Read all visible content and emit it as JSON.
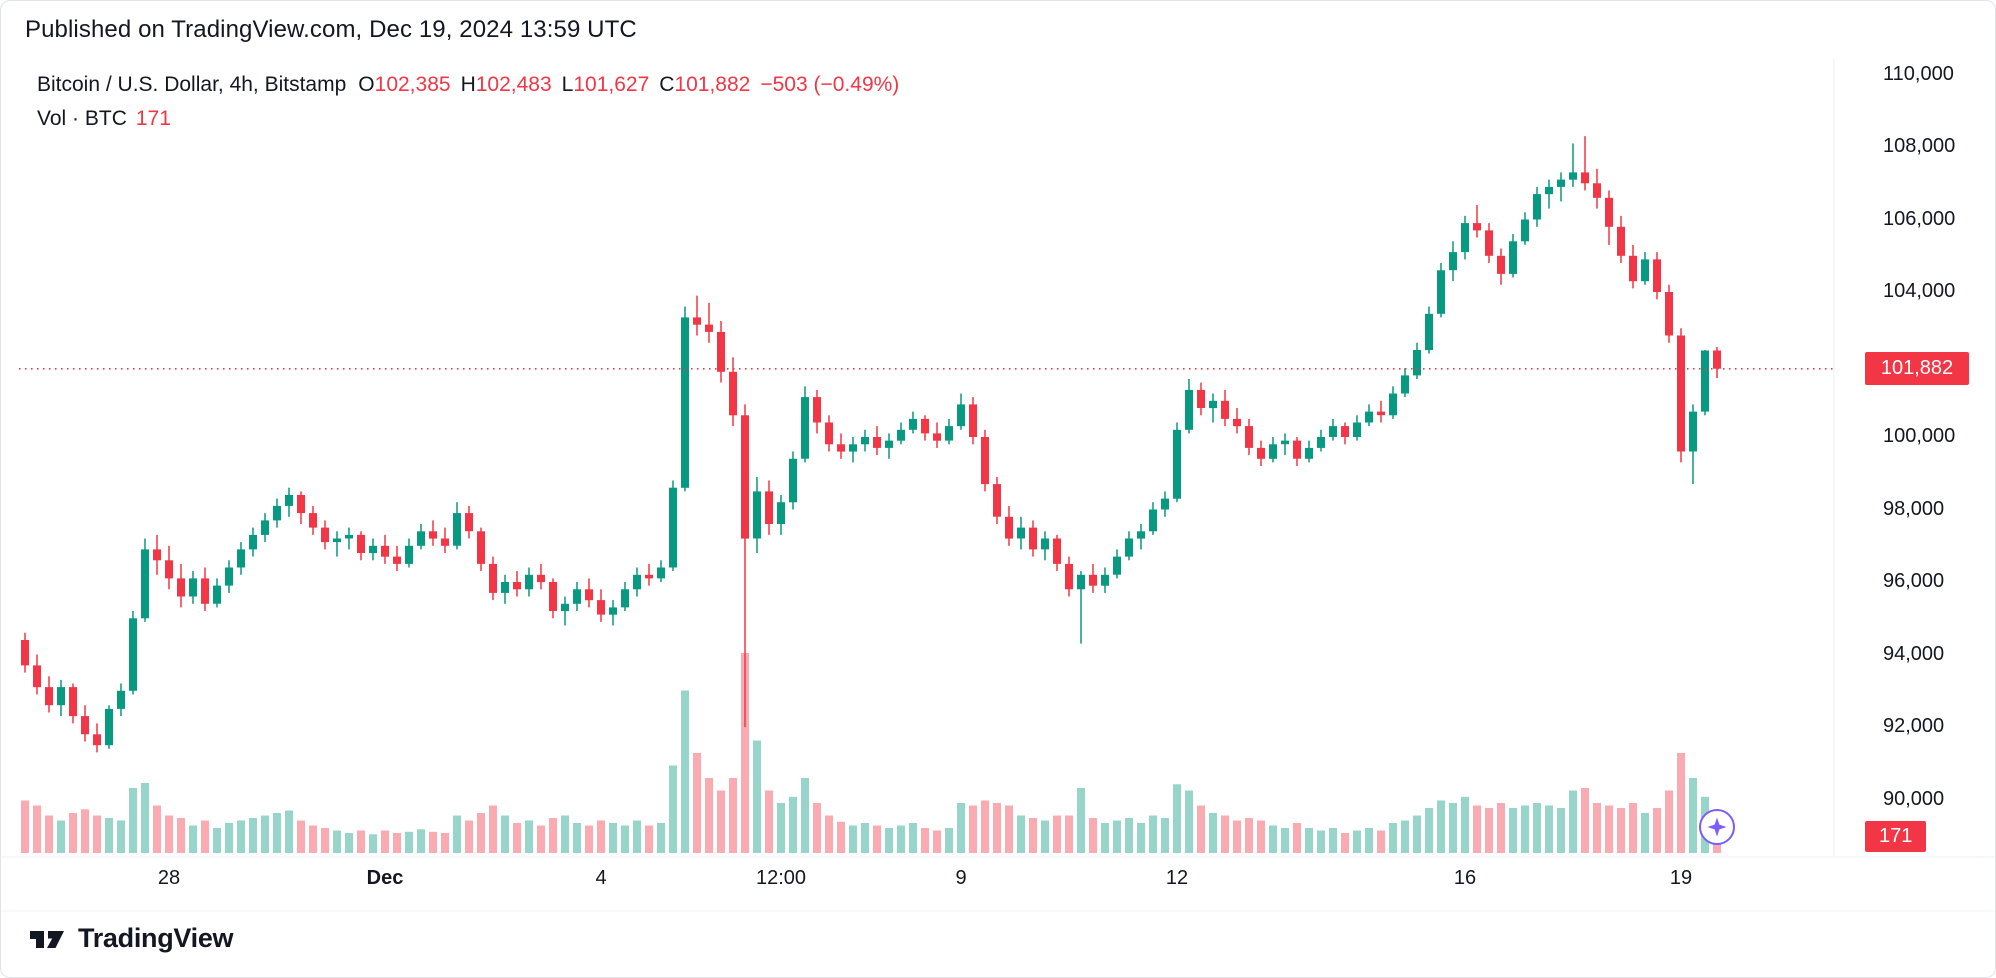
{
  "header": {
    "published": "Published on TradingView.com, Dec 19, 2024 13:59 UTC"
  },
  "legend": {
    "title": "Bitcoin / U.S. Dollar, 4h, Bitstamp",
    "ohlc": {
      "o_key": "O",
      "o_val": "102,385",
      "h_key": "H",
      "h_val": "102,483",
      "l_key": "L",
      "l_val": "101,627",
      "c_key": "C",
      "c_val": "101,882",
      "change": "−503 (−0.49%)"
    },
    "volume_row": {
      "label": "Vol · BTC",
      "value": "171"
    }
  },
  "price_tag": {
    "text": "101,882",
    "value": 101882
  },
  "volume_tag": {
    "text": "171"
  },
  "price_axis": {
    "ticks": [
      {
        "text": "110,000",
        "value": 110000
      },
      {
        "text": "108,000",
        "value": 108000
      },
      {
        "text": "106,000",
        "value": 106000
      },
      {
        "text": "104,000",
        "value": 104000
      },
      {
        "text": "100,000",
        "value": 100000
      },
      {
        "text": "98,000",
        "value": 98000
      },
      {
        "text": "96,000",
        "value": 96000
      },
      {
        "text": "94,000",
        "value": 94000
      },
      {
        "text": "92,000",
        "value": 92000
      },
      {
        "text": "90,000",
        "value": 90000
      }
    ]
  },
  "time_axis": {
    "labels": [
      {
        "text": "28",
        "index": 12,
        "bold": false
      },
      {
        "text": "Dec",
        "index": 30,
        "bold": true
      },
      {
        "text": "4",
        "index": 48,
        "bold": false
      },
      {
        "text": "12:00",
        "index": 63,
        "bold": false
      },
      {
        "text": "9",
        "index": 78,
        "bold": false
      },
      {
        "text": "12",
        "index": 96,
        "bold": false
      },
      {
        "text": "16",
        "index": 120,
        "bold": false
      },
      {
        "text": "19",
        "index": 138,
        "bold": false
      }
    ]
  },
  "footer": {
    "brand": "TradingView"
  },
  "colors": {
    "up": "#089981",
    "down": "#f23645",
    "text": "#131722",
    "tag_bg": "#f23645",
    "tag_text": "#ffffff",
    "price_line": "#f23645",
    "separator": "#eceff2",
    "sparkle": "#7c5cfa"
  },
  "chart_data": {
    "type": "candlestick",
    "title": "Bitcoin / U.S. Dollar, 4h, Bitstamp",
    "timeframe": "4h",
    "exchange": "Bitstamp",
    "published": "Dec 19, 2024 13:59 UTC",
    "last_candle": {
      "open": 102385,
      "high": 102483,
      "low": 101627,
      "close": 101882,
      "change": -503,
      "change_pct": -0.49,
      "volume_btc": 171
    },
    "price_line_value": 101882,
    "y_axis": {
      "visible_ticks": [
        110000,
        108000,
        106000,
        104000,
        100000,
        98000,
        96000,
        94000,
        92000,
        90000
      ],
      "visible_range": [
        89200,
        110600
      ]
    },
    "x_axis": {
      "tick_labels": [
        "28",
        "Dec",
        "4",
        "12:00",
        "9",
        "12",
        "16",
        "19"
      ]
    },
    "columns": [
      "open",
      "high",
      "low",
      "close",
      "volume"
    ],
    "candles": [
      [
        94400,
        94600,
        93500,
        93700,
        420
      ],
      [
        93700,
        94000,
        92900,
        93100,
        380
      ],
      [
        93100,
        93400,
        92400,
        92600,
        300
      ],
      [
        92600,
        93300,
        92300,
        93100,
        260
      ],
      [
        93100,
        93200,
        92100,
        92300,
        320
      ],
      [
        92300,
        92600,
        91600,
        91800,
        350
      ],
      [
        91800,
        92100,
        91300,
        91500,
        300
      ],
      [
        91500,
        92600,
        91400,
        92500,
        280
      ],
      [
        92500,
        93200,
        92300,
        93000,
        260
      ],
      [
        93000,
        95200,
        92900,
        95000,
        520
      ],
      [
        95000,
        97200,
        94900,
        96900,
        560
      ],
      [
        96900,
        97300,
        96200,
        96600,
        380
      ],
      [
        96600,
        97000,
        95800,
        96100,
        300
      ],
      [
        96100,
        96500,
        95300,
        95600,
        280
      ],
      [
        95600,
        96300,
        95400,
        96100,
        220
      ],
      [
        96100,
        96400,
        95200,
        95400,
        260
      ],
      [
        95400,
        96100,
        95300,
        95900,
        200
      ],
      [
        95900,
        96600,
        95700,
        96400,
        240
      ],
      [
        96400,
        97100,
        96200,
        96900,
        260
      ],
      [
        96900,
        97500,
        96700,
        97300,
        280
      ],
      [
        97300,
        97900,
        97100,
        97700,
        300
      ],
      [
        97700,
        98300,
        97500,
        98100,
        320
      ],
      [
        98100,
        98600,
        97800,
        98400,
        340
      ],
      [
        98400,
        98500,
        97600,
        97900,
        260
      ],
      [
        97900,
        98100,
        97300,
        97500,
        220
      ],
      [
        97500,
        97700,
        96900,
        97100,
        200
      ],
      [
        97100,
        97400,
        96700,
        97200,
        180
      ],
      [
        97200,
        97500,
        96900,
        97300,
        160
      ],
      [
        97300,
        97400,
        96600,
        96800,
        180
      ],
      [
        96800,
        97200,
        96600,
        97000,
        150
      ],
      [
        97000,
        97300,
        96500,
        96700,
        180
      ],
      [
        96700,
        97000,
        96300,
        96500,
        160
      ],
      [
        96500,
        97200,
        96400,
        97000,
        170
      ],
      [
        97000,
        97600,
        96900,
        97400,
        190
      ],
      [
        97400,
        97700,
        97000,
        97200,
        170
      ],
      [
        97200,
        97500,
        96800,
        97000,
        160
      ],
      [
        97000,
        98200,
        96900,
        97900,
        300
      ],
      [
        97900,
        98100,
        97200,
        97400,
        260
      ],
      [
        97400,
        97500,
        96300,
        96500,
        320
      ],
      [
        96500,
        96700,
        95500,
        95700,
        380
      ],
      [
        95700,
        96200,
        95400,
        96000,
        300
      ],
      [
        96000,
        96300,
        95600,
        95800,
        240
      ],
      [
        95800,
        96400,
        95600,
        96200,
        260
      ],
      [
        96200,
        96500,
        95800,
        96000,
        220
      ],
      [
        96000,
        96100,
        95000,
        95200,
        280
      ],
      [
        95200,
        95600,
        94800,
        95400,
        300
      ],
      [
        95400,
        96000,
        95200,
        95800,
        240
      ],
      [
        95800,
        96100,
        95300,
        95500,
        220
      ],
      [
        95500,
        95800,
        94900,
        95100,
        260
      ],
      [
        95100,
        95500,
        94800,
        95300,
        240
      ],
      [
        95300,
        96000,
        95200,
        95800,
        220
      ],
      [
        95800,
        96400,
        95600,
        96200,
        260
      ],
      [
        96200,
        96500,
        95900,
        96100,
        220
      ],
      [
        96100,
        96600,
        96000,
        96400,
        240
      ],
      [
        96400,
        98800,
        96300,
        98600,
        700
      ],
      [
        98600,
        103600,
        98500,
        103300,
        1300
      ],
      [
        103300,
        103900,
        102800,
        103100,
        800
      ],
      [
        103100,
        103700,
        102600,
        102900,
        600
      ],
      [
        102900,
        103200,
        101500,
        101800,
        500
      ],
      [
        101800,
        102200,
        100300,
        100600,
        600
      ],
      [
        100600,
        100900,
        92000,
        97200,
        1600
      ],
      [
        97200,
        98900,
        96800,
        98500,
        900
      ],
      [
        98500,
        98800,
        97300,
        97600,
        500
      ],
      [
        97600,
        98400,
        97300,
        98200,
        400
      ],
      [
        98200,
        99600,
        98000,
        99400,
        450
      ],
      [
        99400,
        101400,
        99300,
        101100,
        600
      ],
      [
        101100,
        101300,
        100100,
        100400,
        400
      ],
      [
        100400,
        100600,
        99600,
        99800,
        300
      ],
      [
        99800,
        100100,
        99400,
        99600,
        250
      ],
      [
        99600,
        100000,
        99300,
        99800,
        220
      ],
      [
        99800,
        100200,
        99600,
        100000,
        240
      ],
      [
        100000,
        100300,
        99500,
        99700,
        220
      ],
      [
        99700,
        100100,
        99400,
        99900,
        200
      ],
      [
        99900,
        100400,
        99800,
        100200,
        220
      ],
      [
        100200,
        100700,
        100100,
        100500,
        240
      ],
      [
        100500,
        100600,
        99900,
        100100,
        200
      ],
      [
        100100,
        100400,
        99700,
        99900,
        180
      ],
      [
        99900,
        100500,
        99800,
        100300,
        200
      ],
      [
        100300,
        101200,
        100200,
        100900,
        400
      ],
      [
        100900,
        101100,
        99800,
        100000,
        380
      ],
      [
        100000,
        100200,
        98500,
        98700,
        420
      ],
      [
        98700,
        98900,
        97600,
        97800,
        400
      ],
      [
        97800,
        98100,
        97000,
        97200,
        380
      ],
      [
        97200,
        97800,
        96900,
        97500,
        300
      ],
      [
        97500,
        97700,
        96700,
        96900,
        280
      ],
      [
        96900,
        97400,
        96600,
        97200,
        260
      ],
      [
        97200,
        97300,
        96300,
        96500,
        300
      ],
      [
        96500,
        96700,
        95600,
        95800,
        300
      ],
      [
        95800,
        96300,
        94300,
        96200,
        520
      ],
      [
        96200,
        96500,
        95700,
        95900,
        280
      ],
      [
        95900,
        96400,
        95700,
        96200,
        240
      ],
      [
        96200,
        96900,
        96100,
        96700,
        260
      ],
      [
        96700,
        97400,
        96600,
        97200,
        280
      ],
      [
        97200,
        97600,
        96900,
        97400,
        240
      ],
      [
        97400,
        98200,
        97300,
        98000,
        300
      ],
      [
        98000,
        98500,
        97800,
        98300,
        280
      ],
      [
        98300,
        100400,
        98200,
        100200,
        550
      ],
      [
        100200,
        101600,
        100100,
        101300,
        500
      ],
      [
        101300,
        101500,
        100600,
        100800,
        380
      ],
      [
        100800,
        101200,
        100400,
        101000,
        320
      ],
      [
        101000,
        101300,
        100300,
        100500,
        300
      ],
      [
        100500,
        100800,
        100100,
        100300,
        260
      ],
      [
        100300,
        100500,
        99500,
        99700,
        280
      ],
      [
        99700,
        99900,
        99200,
        99400,
        260
      ],
      [
        99400,
        100000,
        99300,
        99800,
        220
      ],
      [
        99800,
        100100,
        99500,
        99900,
        200
      ],
      [
        99900,
        100000,
        99200,
        99400,
        240
      ],
      [
        99400,
        99900,
        99300,
        99700,
        200
      ],
      [
        99700,
        100200,
        99600,
        100000,
        180
      ],
      [
        100000,
        100500,
        99900,
        100300,
        200
      ],
      [
        100300,
        100400,
        99800,
        100000,
        160
      ],
      [
        100000,
        100600,
        99900,
        100400,
        180
      ],
      [
        100400,
        100900,
        100300,
        100700,
        200
      ],
      [
        100700,
        101000,
        100400,
        100600,
        180
      ],
      [
        100600,
        101400,
        100500,
        101200,
        240
      ],
      [
        101200,
        101900,
        101100,
        101700,
        260
      ],
      [
        101700,
        102600,
        101600,
        102400,
        300
      ],
      [
        102400,
        103600,
        102300,
        103400,
        360
      ],
      [
        103400,
        104800,
        103300,
        104600,
        420
      ],
      [
        104600,
        105400,
        104300,
        105100,
        400
      ],
      [
        105100,
        106100,
        104900,
        105900,
        450
      ],
      [
        105900,
        106400,
        105500,
        105700,
        380
      ],
      [
        105700,
        105900,
        104800,
        105000,
        360
      ],
      [
        105000,
        105200,
        104200,
        104500,
        400
      ],
      [
        104500,
        105600,
        104400,
        105400,
        360
      ],
      [
        105400,
        106200,
        105300,
        106000,
        380
      ],
      [
        106000,
        106900,
        105800,
        106700,
        400
      ],
      [
        106700,
        107100,
        106300,
        106900,
        380
      ],
      [
        106900,
        107300,
        106500,
        107100,
        360
      ],
      [
        107100,
        108100,
        106900,
        107300,
        500
      ],
      [
        107300,
        108300,
        106800,
        107000,
        520
      ],
      [
        107000,
        107400,
        106300,
        106600,
        400
      ],
      [
        106600,
        106800,
        105300,
        105800,
        380
      ],
      [
        105800,
        106100,
        104800,
        105000,
        360
      ],
      [
        105000,
        105300,
        104100,
        104300,
        400
      ],
      [
        104300,
        105100,
        104200,
        104900,
        320
      ],
      [
        104900,
        105100,
        103800,
        104000,
        360
      ],
      [
        104000,
        104200,
        102600,
        102800,
        500
      ],
      [
        102800,
        103000,
        99300,
        99600,
        800
      ],
      [
        99600,
        100900,
        98700,
        100700,
        600
      ],
      [
        100700,
        102400,
        100600,
        102385,
        450
      ],
      [
        102385,
        102483,
        101627,
        101882,
        171
      ]
    ]
  }
}
